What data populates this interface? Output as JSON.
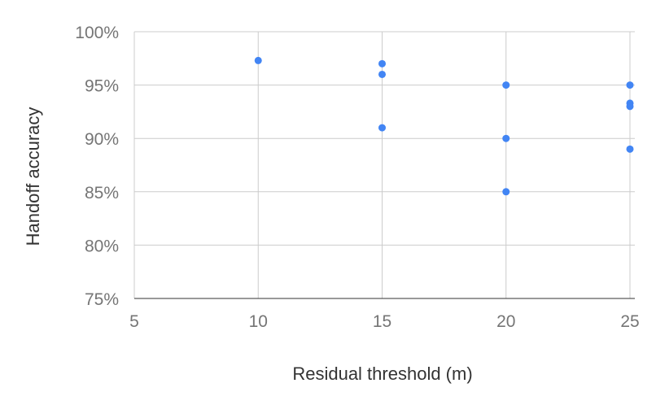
{
  "chart_data": {
    "type": "scatter",
    "title": "",
    "xlabel": "Residual threshold (m)",
    "ylabel": "Handoff accuracy",
    "xlim": [
      5,
      25
    ],
    "ylim": [
      75,
      100
    ],
    "x_ticks": [
      5,
      10,
      15,
      20,
      25
    ],
    "y_ticks": [
      75,
      80,
      85,
      90,
      95,
      100
    ],
    "x_tick_labels": [
      "5",
      "10",
      "15",
      "20",
      "25"
    ],
    "y_tick_labels": [
      "75%",
      "80%",
      "85%",
      "90%",
      "95%",
      "100%"
    ],
    "grid": true,
    "legend": "none",
    "point_color": "#4285f4",
    "series": [
      {
        "points": [
          {
            "x": 10,
            "y": 97.3
          },
          {
            "x": 15,
            "y": 97.0
          },
          {
            "x": 15,
            "y": 96.0
          },
          {
            "x": 15,
            "y": 91.0
          },
          {
            "x": 20,
            "y": 95.0
          },
          {
            "x": 20,
            "y": 90.0
          },
          {
            "x": 20,
            "y": 85.0
          },
          {
            "x": 25,
            "y": 95.0
          },
          {
            "x": 25,
            "y": 93.3
          },
          {
            "x": 25,
            "y": 93.0
          },
          {
            "x": 25,
            "y": 89.0
          }
        ]
      }
    ]
  }
}
